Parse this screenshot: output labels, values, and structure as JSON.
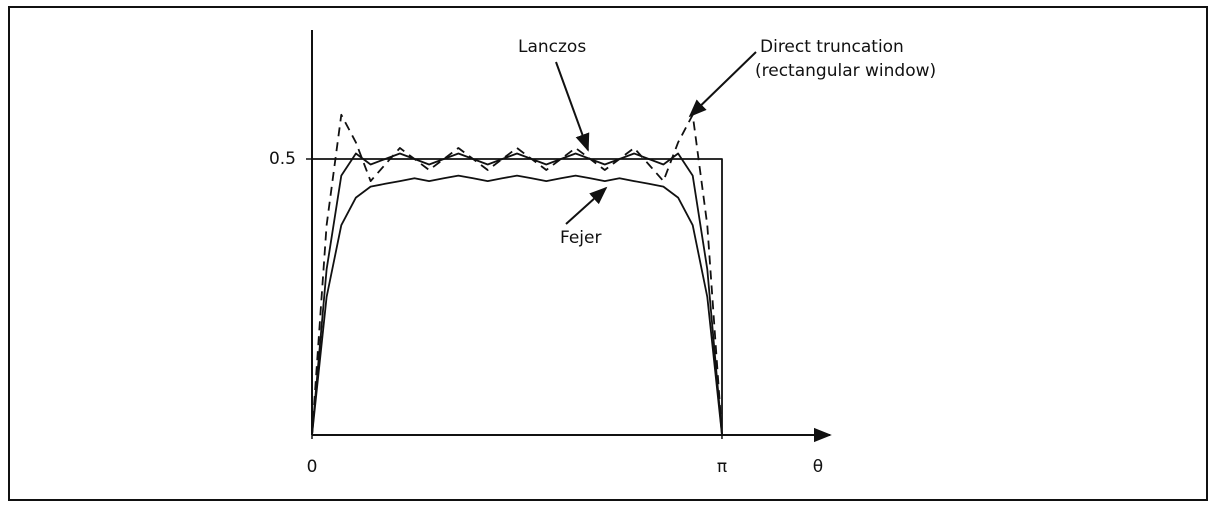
{
  "chart_data": {
    "type": "line",
    "annotations": [
      "Lanczos",
      "Fejer",
      "Direct truncation",
      "(rectangular window)"
    ],
    "x_label": "θ",
    "xlim": [
      0,
      3.98
    ],
    "ylim": [
      0,
      0.725
    ],
    "xticks": [
      0,
      {
        "value": 3.1416,
        "label": "π"
      }
    ],
    "yticks": [
      0.5
    ],
    "grid": false,
    "series": [
      {
        "color": "#111111",
        "dash": false,
        "x": [
          0,
          0,
          3.1416,
          3.1416
        ],
        "values": [
          0,
          0.5,
          0.5,
          0
        ]
      },
      {
        "name": "Direct truncation",
        "color": "#111111",
        "dash": true,
        "x": [
          0,
          0.1122,
          0.2244,
          0.3366,
          0.4488,
          0.561,
          0.6732,
          0.7854,
          0.8976,
          1.0098,
          1.122,
          1.2342,
          1.3464,
          1.4586,
          1.5708,
          1.683,
          1.7952,
          1.9074,
          2.0196,
          2.1318,
          2.244,
          2.3562,
          2.4684,
          2.5806,
          2.6928,
          2.805,
          2.9172,
          3.0294,
          3.1416
        ],
        "values": [
          0,
          0.38,
          0.58,
          0.53,
          0.46,
          0.49,
          0.52,
          0.5,
          0.48,
          0.5,
          0.52,
          0.5,
          0.48,
          0.5,
          0.52,
          0.5,
          0.48,
          0.5,
          0.52,
          0.5,
          0.48,
          0.5,
          0.52,
          0.49,
          0.46,
          0.53,
          0.58,
          0.38,
          0
        ]
      },
      {
        "name": "Lanczos",
        "color": "#111111",
        "dash": false,
        "x": [
          0,
          0.1122,
          0.2244,
          0.3366,
          0.4488,
          0.561,
          0.6732,
          0.7854,
          0.8976,
          1.0098,
          1.122,
          1.2342,
          1.3464,
          1.4586,
          1.5708,
          1.683,
          1.7952,
          1.9074,
          2.0196,
          2.1318,
          2.244,
          2.3562,
          2.4684,
          2.5806,
          2.6928,
          2.805,
          2.9172,
          3.0294,
          3.1416
        ],
        "values": [
          0,
          0.3,
          0.47,
          0.51,
          0.49,
          0.5,
          0.51,
          0.5,
          0.49,
          0.5,
          0.51,
          0.5,
          0.49,
          0.5,
          0.51,
          0.5,
          0.49,
          0.5,
          0.51,
          0.5,
          0.49,
          0.5,
          0.51,
          0.5,
          0.49,
          0.51,
          0.47,
          0.3,
          0
        ]
      },
      {
        "name": "Fejer",
        "color": "#111111",
        "dash": false,
        "x": [
          0,
          0.1122,
          0.2244,
          0.3366,
          0.4488,
          0.561,
          0.6732,
          0.7854,
          0.8976,
          1.0098,
          1.122,
          1.2342,
          1.3464,
          1.4586,
          1.5708,
          1.683,
          1.7952,
          1.9074,
          2.0196,
          2.1318,
          2.244,
          2.3562,
          2.4684,
          2.5806,
          2.6928,
          2.805,
          2.9172,
          3.0294,
          3.1416
        ],
        "values": [
          0,
          0.25,
          0.38,
          0.43,
          0.45,
          0.455,
          0.46,
          0.465,
          0.46,
          0.465,
          0.47,
          0.465,
          0.46,
          0.465,
          0.47,
          0.465,
          0.46,
          0.465,
          0.47,
          0.465,
          0.46,
          0.465,
          0.46,
          0.455,
          0.45,
          0.43,
          0.38,
          0.25,
          0
        ]
      }
    ]
  }
}
